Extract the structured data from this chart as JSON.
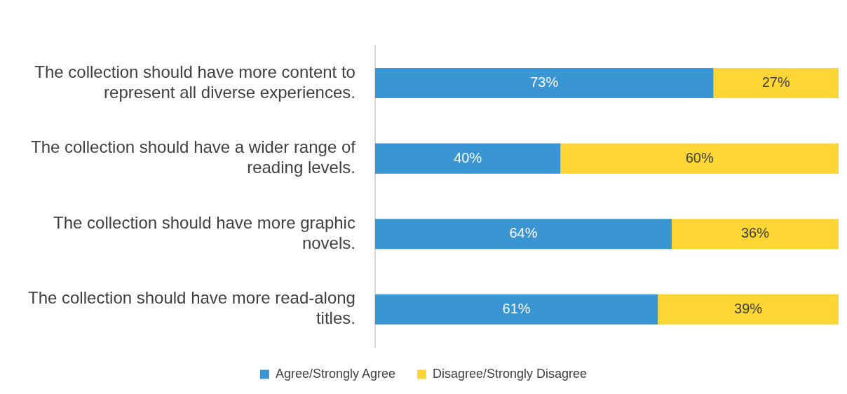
{
  "chart_data": {
    "type": "bar",
    "orientation": "horizontal",
    "stacked": true,
    "legend": "bottom",
    "grid": false,
    "categories": [
      "The collection should have more content to represent all diverse experiences.",
      "The collection should have a wider range of reading levels.",
      "The collection should have more graphic novels.",
      "The collection should have more read-along titles."
    ],
    "series": [
      {
        "name": "Agree/Strongly Agree",
        "color": "#3a96d2",
        "values": [
          73,
          40,
          64,
          61
        ],
        "value_labels": [
          "73%",
          "40%",
          "64%",
          "61%"
        ]
      },
      {
        "name": "Disagree/Strongly Disagree",
        "color": "#fdd535",
        "values": [
          27,
          60,
          36,
          39
        ],
        "value_labels": [
          "27%",
          "60%",
          "36%",
          "39%"
        ]
      }
    ]
  }
}
